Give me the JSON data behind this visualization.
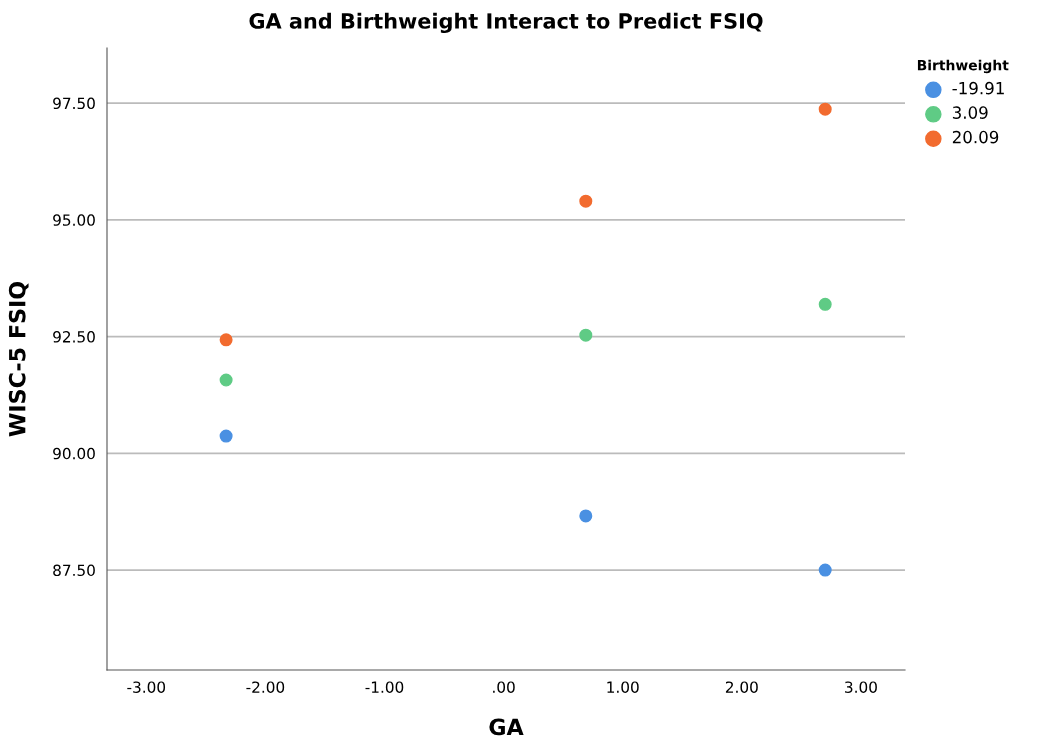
{
  "chart_data": {
    "type": "scatter",
    "title": "GA and Birthweight Interact to Predict FSIQ",
    "xlabel": "GA",
    "ylabel": "WISC-5 FSIQ",
    "legend_title": "Birthweight",
    "x": [
      -2.33,
      0.69,
      2.7
    ],
    "series": [
      {
        "name": "-19.91",
        "color": "#4a90e2",
        "values": [
          90.37,
          88.66,
          87.5
        ]
      },
      {
        "name": "3.09",
        "color": "#5fcb85",
        "values": [
          91.57,
          92.53,
          93.19
        ]
      },
      {
        "name": "20.09",
        "color": "#f26b2f",
        "values": [
          92.43,
          95.4,
          97.37
        ]
      }
    ],
    "xlim": [
      -3.33,
      3.37
    ],
    "ylim": [
      85.36,
      98.68
    ],
    "xticks": [
      {
        "value": -3,
        "label": "-3.00"
      },
      {
        "value": -2,
        "label": "-2.00"
      },
      {
        "value": -1,
        "label": "-1.00"
      },
      {
        "value": 0,
        "label": ".00"
      },
      {
        "value": 1,
        "label": "1.00"
      },
      {
        "value": 2,
        "label": "2.00"
      },
      {
        "value": 3,
        "label": "3.00"
      }
    ],
    "yticks": [
      {
        "value": 87.5,
        "label": "87.50"
      },
      {
        "value": 90,
        "label": "90.00"
      },
      {
        "value": 92.5,
        "label": "92.50"
      },
      {
        "value": 95,
        "label": "95.00"
      },
      {
        "value": 97.5,
        "label": "97.50"
      }
    ],
    "grid": "y",
    "legend": "top right",
    "marker": "circle"
  }
}
